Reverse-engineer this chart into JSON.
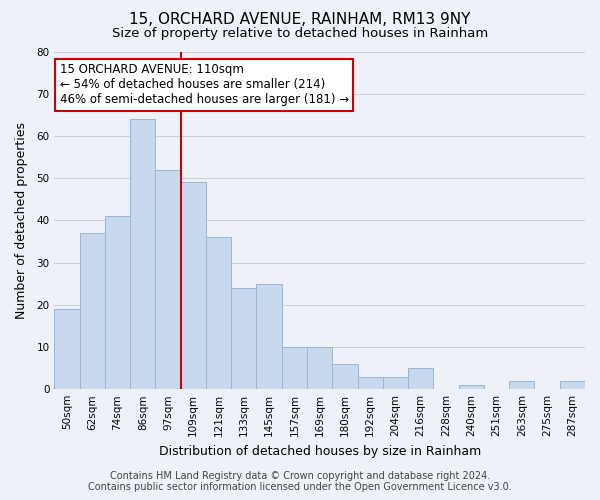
{
  "title": "15, ORCHARD AVENUE, RAINHAM, RM13 9NY",
  "subtitle": "Size of property relative to detached houses in Rainham",
  "xlabel": "Distribution of detached houses by size in Rainham",
  "ylabel": "Number of detached properties",
  "categories": [
    "50sqm",
    "62sqm",
    "74sqm",
    "86sqm",
    "97sqm",
    "109sqm",
    "121sqm",
    "133sqm",
    "145sqm",
    "157sqm",
    "169sqm",
    "180sqm",
    "192sqm",
    "204sqm",
    "216sqm",
    "228sqm",
    "240sqm",
    "251sqm",
    "263sqm",
    "275sqm",
    "287sqm"
  ],
  "values": [
    19,
    37,
    41,
    64,
    52,
    49,
    36,
    24,
    25,
    10,
    10,
    6,
    3,
    3,
    5,
    0,
    1,
    0,
    2,
    0,
    2
  ],
  "bar_color": "#c8d9ee",
  "bar_edge_color": "#9ab5d5",
  "vline_x_index": 5,
  "vline_color": "#cc0000",
  "annotation_text": "15 ORCHARD AVENUE: 110sqm\n← 54% of detached houses are smaller (214)\n46% of semi-detached houses are larger (181) →",
  "annotation_box_color": "#ffffff",
  "annotation_box_edge_color": "#cc0000",
  "ylim": [
    0,
    80
  ],
  "yticks": [
    0,
    10,
    20,
    30,
    40,
    50,
    60,
    70,
    80
  ],
  "footer_line1": "Contains HM Land Registry data © Crown copyright and database right 2024.",
  "footer_line2": "Contains public sector information licensed under the Open Government Licence v3.0.",
  "bg_color": "#eef2f8",
  "plot_bg_color": "#eef2f8",
  "grid_color": "#c8d0de",
  "title_fontsize": 11,
  "subtitle_fontsize": 9.5,
  "axis_label_fontsize": 9,
  "tick_fontsize": 7.5,
  "annotation_fontsize": 8.5,
  "footer_fontsize": 7
}
